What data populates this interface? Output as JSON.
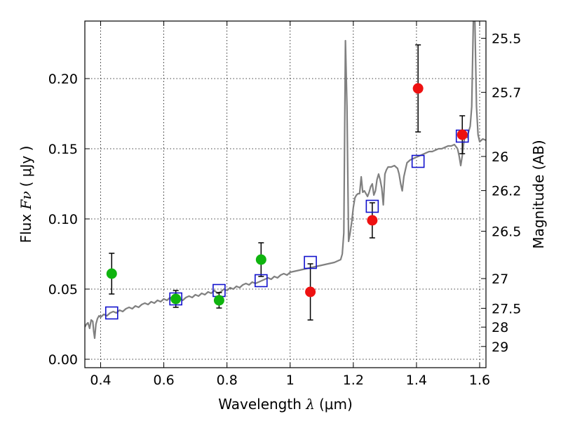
{
  "chart_data": {
    "type": "scatter",
    "xlabel": {
      "prefix": "Wavelength ",
      "symbol": "λ",
      "unit": "(μm)"
    },
    "ylabel": {
      "prefix": "Flux ",
      "symbol": "Fν",
      "unit": "( μJy )"
    },
    "ylabel_right": "Magnitude (AB)",
    "xlim": [
      0.35,
      1.62
    ],
    "ylim": [
      -0.006,
      0.241
    ],
    "grid": true,
    "x_ticks": [
      {
        "value": 0.4,
        "label": "0.4"
      },
      {
        "value": 0.6,
        "label": "0.6"
      },
      {
        "value": 0.8,
        "label": "0.8"
      },
      {
        "value": 1.0,
        "label": "1"
      },
      {
        "value": 1.2,
        "label": "1.2"
      },
      {
        "value": 1.4,
        "label": "1.4"
      },
      {
        "value": 1.6,
        "label": "1.6"
      }
    ],
    "y_ticks": [
      {
        "value": 0.0,
        "label": "0.00"
      },
      {
        "value": 0.05,
        "label": "0.05"
      },
      {
        "value": 0.1,
        "label": "0.10"
      },
      {
        "value": 0.15,
        "label": "0.15"
      },
      {
        "value": 0.2,
        "label": "0.20"
      }
    ],
    "right_ticks": [
      {
        "flux": 0.2287,
        "label": "25.5"
      },
      {
        "flux": 0.1902,
        "label": "25.7"
      },
      {
        "flux": 0.1445,
        "label": "26"
      },
      {
        "flux": 0.1202,
        "label": "26.2"
      },
      {
        "flux": 0.0912,
        "label": "26.5"
      },
      {
        "flux": 0.0575,
        "label": "27"
      },
      {
        "flux": 0.0363,
        "label": "27.5"
      },
      {
        "flux": 0.0229,
        "label": "28"
      },
      {
        "flux": 0.0091,
        "label": "29"
      }
    ],
    "spectrum": {
      "color": "#808080",
      "points": [
        [
          0.35,
          0.023
        ],
        [
          0.355,
          0.025
        ],
        [
          0.36,
          0.026
        ],
        [
          0.365,
          0.022
        ],
        [
          0.37,
          0.028
        ],
        [
          0.375,
          0.027
        ],
        [
          0.378,
          0.02
        ],
        [
          0.381,
          0.015
        ],
        [
          0.385,
          0.025
        ],
        [
          0.39,
          0.029
        ],
        [
          0.395,
          0.031
        ],
        [
          0.4,
          0.03
        ],
        [
          0.41,
          0.032
        ],
        [
          0.42,
          0.031
        ],
        [
          0.43,
          0.033
        ],
        [
          0.44,
          0.034
        ],
        [
          0.45,
          0.033
        ],
        [
          0.46,
          0.035
        ],
        [
          0.47,
          0.034
        ],
        [
          0.48,
          0.036
        ],
        [
          0.49,
          0.037
        ],
        [
          0.5,
          0.036
        ],
        [
          0.51,
          0.038
        ],
        [
          0.52,
          0.037
        ],
        [
          0.53,
          0.039
        ],
        [
          0.54,
          0.04
        ],
        [
          0.55,
          0.039
        ],
        [
          0.56,
          0.041
        ],
        [
          0.57,
          0.04
        ],
        [
          0.58,
          0.042
        ],
        [
          0.59,
          0.041
        ],
        [
          0.6,
          0.043
        ],
        [
          0.61,
          0.042
        ],
        [
          0.62,
          0.044
        ],
        [
          0.63,
          0.043
        ],
        [
          0.64,
          0.045
        ],
        [
          0.65,
          0.043
        ],
        [
          0.66,
          0.042
        ],
        [
          0.67,
          0.044
        ],
        [
          0.68,
          0.045
        ],
        [
          0.69,
          0.044
        ],
        [
          0.7,
          0.046
        ],
        [
          0.71,
          0.045
        ],
        [
          0.72,
          0.047
        ],
        [
          0.73,
          0.046
        ],
        [
          0.74,
          0.048
        ],
        [
          0.75,
          0.047
        ],
        [
          0.76,
          0.049
        ],
        [
          0.77,
          0.047
        ],
        [
          0.78,
          0.048
        ],
        [
          0.79,
          0.05
        ],
        [
          0.8,
          0.049
        ],
        [
          0.81,
          0.051
        ],
        [
          0.82,
          0.05
        ],
        [
          0.83,
          0.052
        ],
        [
          0.84,
          0.051
        ],
        [
          0.85,
          0.053
        ],
        [
          0.86,
          0.054
        ],
        [
          0.87,
          0.053
        ],
        [
          0.88,
          0.055
        ],
        [
          0.89,
          0.054
        ],
        [
          0.9,
          0.055
        ],
        [
          0.91,
          0.056
        ],
        [
          0.92,
          0.057
        ],
        [
          0.93,
          0.058
        ],
        [
          0.94,
          0.057
        ],
        [
          0.95,
          0.059
        ],
        [
          0.96,
          0.058
        ],
        [
          0.97,
          0.06
        ],
        [
          0.98,
          0.061
        ],
        [
          0.99,
          0.06
        ],
        [
          1.0,
          0.062
        ],
        [
          1.02,
          0.063
        ],
        [
          1.04,
          0.064
        ],
        [
          1.06,
          0.065
        ],
        [
          1.08,
          0.066
        ],
        [
          1.1,
          0.067
        ],
        [
          1.12,
          0.068
        ],
        [
          1.14,
          0.069
        ],
        [
          1.15,
          0.07
        ],
        [
          1.16,
          0.071
        ],
        [
          1.165,
          0.075
        ],
        [
          1.17,
          0.09
        ],
        [
          1.175,
          0.227
        ],
        [
          1.18,
          0.18
        ],
        [
          1.185,
          0.084
        ],
        [
          1.19,
          0.09
        ],
        [
          1.195,
          0.098
        ],
        [
          1.2,
          0.108
        ],
        [
          1.205,
          0.115
        ],
        [
          1.21,
          0.117
        ],
        [
          1.215,
          0.118
        ],
        [
          1.22,
          0.118
        ],
        [
          1.225,
          0.13
        ],
        [
          1.23,
          0.119
        ],
        [
          1.235,
          0.12
        ],
        [
          1.24,
          0.118
        ],
        [
          1.245,
          0.116
        ],
        [
          1.25,
          0.119
        ],
        [
          1.255,
          0.123
        ],
        [
          1.26,
          0.125
        ],
        [
          1.265,
          0.117
        ],
        [
          1.27,
          0.12
        ],
        [
          1.275,
          0.128
        ],
        [
          1.28,
          0.132
        ],
        [
          1.285,
          0.128
        ],
        [
          1.29,
          0.122
        ],
        [
          1.295,
          0.11
        ],
        [
          1.3,
          0.132
        ],
        [
          1.305,
          0.135
        ],
        [
          1.31,
          0.137
        ],
        [
          1.32,
          0.137
        ],
        [
          1.33,
          0.138
        ],
        [
          1.34,
          0.136
        ],
        [
          1.345,
          0.132
        ],
        [
          1.35,
          0.125
        ],
        [
          1.355,
          0.12
        ],
        [
          1.36,
          0.13
        ],
        [
          1.365,
          0.135
        ],
        [
          1.37,
          0.14
        ],
        [
          1.38,
          0.142
        ],
        [
          1.39,
          0.143
        ],
        [
          1.4,
          0.144
        ],
        [
          1.41,
          0.145
        ],
        [
          1.42,
          0.146
        ],
        [
          1.43,
          0.147
        ],
        [
          1.44,
          0.148
        ],
        [
          1.45,
          0.148
        ],
        [
          1.46,
          0.149
        ],
        [
          1.47,
          0.15
        ],
        [
          1.48,
          0.15
        ],
        [
          1.49,
          0.151
        ],
        [
          1.5,
          0.152
        ],
        [
          1.51,
          0.152
        ],
        [
          1.52,
          0.153
        ],
        [
          1.53,
          0.15
        ],
        [
          1.535,
          0.145
        ],
        [
          1.54,
          0.138
        ],
        [
          1.545,
          0.145
        ],
        [
          1.55,
          0.155
        ],
        [
          1.555,
          0.16
        ],
        [
          1.56,
          0.158
        ],
        [
          1.565,
          0.162
        ],
        [
          1.57,
          0.166
        ],
        [
          1.575,
          0.18
        ],
        [
          1.58,
          0.241
        ],
        [
          1.585,
          0.241
        ],
        [
          1.59,
          0.18
        ],
        [
          1.595,
          0.16
        ],
        [
          1.6,
          0.155
        ],
        [
          1.61,
          0.157
        ],
        [
          1.62,
          0.156
        ]
      ]
    },
    "series": [
      {
        "marker": "circle",
        "color": "#0fb40f",
        "points": [
          {
            "x": 0.435,
            "y": 0.061,
            "err": 0.0145
          },
          {
            "x": 0.638,
            "y": 0.043,
            "err": 0.006
          },
          {
            "x": 0.775,
            "y": 0.042,
            "err": 0.0055
          },
          {
            "x": 0.908,
            "y": 0.071,
            "err": 0.012
          }
        ]
      },
      {
        "marker": "circle",
        "color": "#ee1111",
        "points": [
          {
            "x": 1.064,
            "y": 0.048,
            "err": 0.02
          },
          {
            "x": 1.26,
            "y": 0.099,
            "err": 0.0125
          },
          {
            "x": 1.405,
            "y": 0.193,
            "err": 0.031
          },
          {
            "x": 1.545,
            "y": 0.16,
            "err": 0.0135
          }
        ]
      },
      {
        "marker": "square",
        "color": "#1111cc",
        "points": [
          {
            "x": 0.435,
            "y": 0.033
          },
          {
            "x": 0.638,
            "y": 0.043
          },
          {
            "x": 0.775,
            "y": 0.049
          },
          {
            "x": 0.908,
            "y": 0.056
          },
          {
            "x": 1.064,
            "y": 0.069
          },
          {
            "x": 1.26,
            "y": 0.109
          },
          {
            "x": 1.405,
            "y": 0.141
          },
          {
            "x": 1.545,
            "y": 0.159
          }
        ]
      }
    ]
  }
}
